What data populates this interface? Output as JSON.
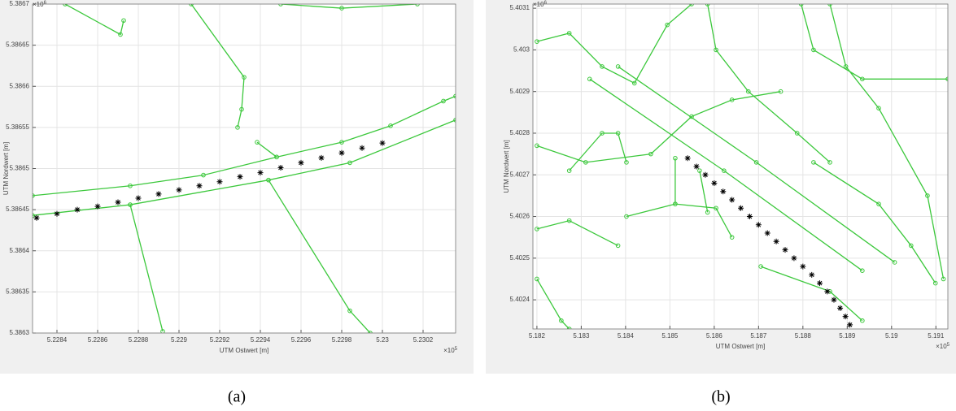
{
  "chart_data": [
    {
      "type": "line",
      "caption": "(a)",
      "xlabel": "UTM Ostwert [m]",
      "ylabel": "UTM Nordwert [m]",
      "x_multiplier": {
        "base": "×10",
        "exponent": 5
      },
      "y_multiplier": {
        "base": "×10",
        "exponent": 6
      },
      "xlim": [
        5.22828,
        5.23036
      ],
      "ylim": [
        5.3863,
        5.3867
      ],
      "xticks": [
        5.2284,
        5.2286,
        5.2288,
        5.229,
        5.2292,
        5.2294,
        5.2296,
        5.2298,
        5.23,
        5.2302
      ],
      "yticks": [
        5.3863,
        5.38635,
        5.3864,
        5.38645,
        5.3865,
        5.38655,
        5.3866,
        5.38665,
        5.3867
      ],
      "grid": true,
      "series": [
        {
          "color": "#3cc83c",
          "marker": "o",
          "x": [
            5.22828,
            5.22876,
            5.22944,
            5.22984,
            5.23036
          ],
          "values": [
            5.386443,
            5.386456,
            5.386486,
            5.386507,
            5.386559
          ]
        },
        {
          "color": "#3cc83c",
          "marker": "o",
          "x": [
            5.22828,
            5.22876,
            5.22912,
            5.22948,
            5.2298,
            5.23004,
            5.2303,
            5.23036
          ],
          "values": [
            5.386467,
            5.386479,
            5.386492,
            5.386514,
            5.386532,
            5.386552,
            5.386582,
            5.386588
          ]
        },
        {
          "color": "#3cc83c",
          "marker": "o",
          "x": [
            5.22906,
            5.22932,
            5.229308,
            5.229288
          ],
          "values": [
            5.3867,
            5.386611,
            5.386572,
            5.38655
          ]
        },
        {
          "color": "#3cc83c",
          "marker": "o",
          "x": [
            5.22844,
            5.228712,
            5.228728
          ],
          "values": [
            5.3867,
            5.386663,
            5.38668
          ]
        },
        {
          "color": "#3cc83c",
          "marker": "o",
          "x": [
            5.2295,
            5.2298,
            5.230172
          ],
          "values": [
            5.3867,
            5.386695,
            5.3867
          ]
        },
        {
          "color": "#3cc83c",
          "marker": "o",
          "x": [
            5.22876,
            5.22892
          ],
          "values": [
            5.386456,
            5.386302
          ]
        },
        {
          "color": "#3cc83c",
          "marker": "o",
          "x": [
            5.22944,
            5.22984,
            5.22994
          ],
          "values": [
            5.386486,
            5.386327,
            5.3863
          ]
        },
        {
          "color": "#3cc83c",
          "marker": "o",
          "x": [
            5.229384,
            5.22948
          ],
          "values": [
            5.386532,
            5.386514
          ]
        },
        {
          "color": "#000000",
          "marker": "*",
          "linestyle": "none",
          "x": [
            5.2283,
            5.2284,
            5.2285,
            5.2286,
            5.2287,
            5.2288,
            5.2289,
            5.229,
            5.2291,
            5.2292,
            5.2293,
            5.2294,
            5.2295,
            5.2296,
            5.2297,
            5.2298,
            5.2299,
            5.23
          ],
          "values": [
            5.38644,
            5.386445,
            5.38645,
            5.386454,
            5.386459,
            5.386464,
            5.386469,
            5.386474,
            5.386479,
            5.386484,
            5.38649,
            5.386495,
            5.386501,
            5.386507,
            5.386513,
            5.386519,
            5.386525,
            5.386531
          ]
        }
      ]
    },
    {
      "type": "line",
      "caption": "(b)",
      "xlabel": "UTM Ostwert [m]",
      "ylabel": "UTM Nordwert [m]",
      "x_multiplier": {
        "base": "×10",
        "exponent": 5
      },
      "y_multiplier": {
        "base": "×10",
        "exponent": 6
      },
      "xlim": [
        5.18191,
        5.19127
      ],
      "ylim": [
        5.40233,
        5.40311
      ],
      "xticks": [
        5.182,
        5.183,
        5.184,
        5.185,
        5.186,
        5.187,
        5.188,
        5.189,
        5.19,
        5.191
      ],
      "yticks": [
        5.4024,
        5.4025,
        5.4026,
        5.4027,
        5.4028,
        5.4029,
        5.403,
        5.4031
      ],
      "grid": true,
      "series": [
        {
          "color": "#3cc83c",
          "marker": "o",
          "x": [
            5.18319,
            5.18622,
            5.18934
          ],
          "values": [
            5.40293,
            5.40271,
            5.40247
          ]
        },
        {
          "color": "#3cc83c",
          "marker": "o",
          "x": [
            5.18383,
            5.18695,
            5.19007
          ],
          "values": [
            5.40296,
            5.40273,
            5.40249
          ]
        },
        {
          "color": "#3cc83c",
          "marker": "o",
          "x": [
            5.18861,
            5.18897,
            5.18971,
            5.19081,
            5.19117
          ],
          "values": [
            5.40311,
            5.40296,
            5.40286,
            5.40265,
            5.40245
          ]
        },
        {
          "color": "#3cc83c",
          "marker": "o",
          "x": [
            5.18796,
            5.18824,
            5.18934,
            5.19127
          ],
          "values": [
            5.40311,
            5.403,
            5.40293,
            5.40293
          ]
        },
        {
          "color": "#3cc83c",
          "marker": "o",
          "x": [
            5.182,
            5.1831,
            5.18457,
            5.18549,
            5.1864,
            5.1875
          ],
          "values": [
            5.40277,
            5.40273,
            5.40275,
            5.40284,
            5.40288,
            5.4029
          ]
        },
        {
          "color": "#3cc83c",
          "marker": "o",
          "x": [
            5.18402,
            5.18512,
            5.18604,
            5.1864
          ],
          "values": [
            5.4026,
            5.40263,
            5.40262,
            5.40255
          ]
        },
        {
          "color": "#3cc83c",
          "marker": "o",
          "x": [
            5.182,
            5.18273,
            5.18383
          ],
          "values": [
            5.40257,
            5.40259,
            5.40253
          ]
        },
        {
          "color": "#3cc83c",
          "marker": "o",
          "x": [
            5.182,
            5.18255,
            5.18273
          ],
          "values": [
            5.40245,
            5.40235,
            5.40233
          ]
        },
        {
          "color": "#3cc83c",
          "marker": "o",
          "x": [
            5.18705,
            5.18861,
            5.18934
          ],
          "values": [
            5.40248,
            5.40242,
            5.40235
          ]
        },
        {
          "color": "#3cc83c",
          "marker": "o",
          "x": [
            5.18824,
            5.18971,
            5.19044,
            5.19099
          ],
          "values": [
            5.40273,
            5.40263,
            5.40253,
            5.40244
          ]
        },
        {
          "color": "#3cc83c",
          "marker": "o",
          "x": [
            5.182,
            5.18273,
            5.18347,
            5.1842,
            5.18494,
            5.18549
          ],
          "values": [
            5.40302,
            5.40304,
            5.40296,
            5.40292,
            5.40306,
            5.40311
          ]
        },
        {
          "color": "#3cc83c",
          "marker": "o",
          "x": [
            5.18585,
            5.18604,
            5.18677,
            5.18787,
            5.18861
          ],
          "values": [
            5.40311,
            5.403,
            5.4029,
            5.4028,
            5.40273
          ]
        },
        {
          "color": "#3cc83c",
          "marker": "o",
          "x": [
            5.18273,
            5.18347,
            5.18383,
            5.18402
          ],
          "values": [
            5.40271,
            5.4028,
            5.4028,
            5.40273
          ]
        },
        {
          "color": "#3cc83c",
          "marker": "o",
          "x": [
            5.18512,
            5.18512
          ],
          "values": [
            5.40274,
            5.40263
          ]
        },
        {
          "color": "#3cc83c",
          "marker": "o",
          "x": [
            5.18567,
            5.18585
          ],
          "values": [
            5.40271,
            5.40261
          ]
        },
        {
          "color": "#000000",
          "marker": "*",
          "linestyle": "none",
          "x": [
            5.1854,
            5.1856,
            5.1858,
            5.186,
            5.1862,
            5.1864,
            5.1866,
            5.1868,
            5.187,
            5.1872,
            5.1874,
            5.1876,
            5.1878,
            5.188,
            5.1882,
            5.18838,
            5.18855,
            5.1887,
            5.18884,
            5.18896,
            5.18906
          ],
          "values": [
            5.40274,
            5.40272,
            5.4027,
            5.40268,
            5.40266,
            5.40264,
            5.40262,
            5.4026,
            5.40258,
            5.40256,
            5.40254,
            5.40252,
            5.4025,
            5.40248,
            5.40246,
            5.40244,
            5.40242,
            5.4024,
            5.40238,
            5.40236,
            5.40234
          ]
        }
      ]
    }
  ]
}
